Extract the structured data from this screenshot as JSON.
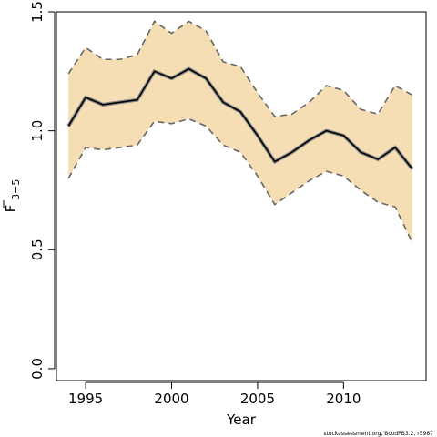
{
  "chart_data": {
    "type": "line",
    "xlabel": "Year",
    "ylabel": "F",
    "ylabel_subscript": "3−5",
    "xlim": [
      1993.3,
      2014.8
    ],
    "ylim": [
      -0.05,
      1.5
    ],
    "x_ticks": [
      1995,
      2000,
      2005,
      2010
    ],
    "y_ticks": [
      0.0,
      0.5,
      1.0,
      1.5
    ],
    "y_tick_labels": [
      "0.0",
      "0.5",
      "1.0",
      "1.5"
    ],
    "grid": false,
    "years": [
      1994,
      1995,
      1996,
      1997,
      1998,
      1999,
      2000,
      2001,
      2002,
      2003,
      2004,
      2005,
      2006,
      2007,
      2008,
      2009,
      2010,
      2011,
      2012,
      2013,
      2014
    ],
    "series": [
      {
        "role": "estimate",
        "color": "#000000",
        "values": [
          1.02,
          1.14,
          1.11,
          1.12,
          1.13,
          1.25,
          1.22,
          1.26,
          1.22,
          1.12,
          1.08,
          0.98,
          0.87,
          0.91,
          0.96,
          1.0,
          0.98,
          0.91,
          0.88,
          0.93,
          0.84
        ]
      },
      {
        "role": "upper",
        "color": "#666666",
        "values": [
          1.24,
          1.35,
          1.3,
          1.3,
          1.32,
          1.46,
          1.41,
          1.46,
          1.42,
          1.29,
          1.27,
          1.16,
          1.06,
          1.07,
          1.12,
          1.19,
          1.17,
          1.09,
          1.07,
          1.19,
          1.15
        ]
      },
      {
        "role": "lower",
        "color": "#666666",
        "values": [
          0.8,
          0.93,
          0.92,
          0.93,
          0.94,
          1.04,
          1.03,
          1.05,
          1.02,
          0.94,
          0.91,
          0.81,
          0.69,
          0.74,
          0.79,
          0.83,
          0.81,
          0.75,
          0.7,
          0.68,
          0.53
        ]
      }
    ],
    "band_color": "#f5deb3"
  },
  "credit": "stockassessment.org, BcodPB3.2, r5987"
}
